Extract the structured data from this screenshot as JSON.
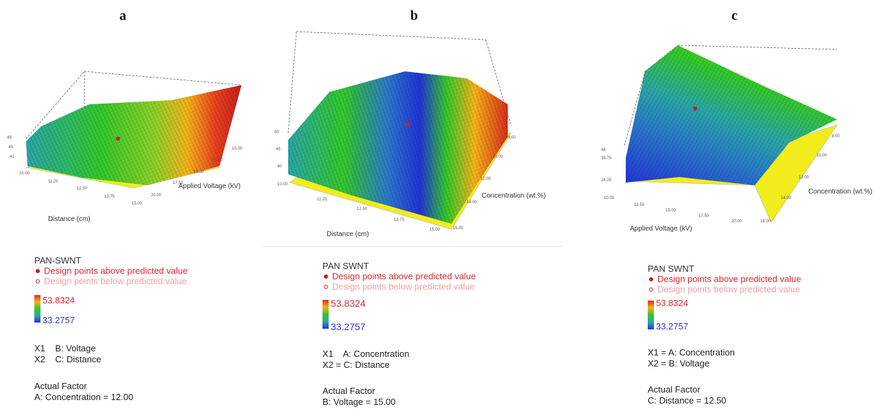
{
  "chart_data": [
    {
      "type": "surface3d",
      "panel": "a",
      "xlabel": "Distance (cm)",
      "ylabel": "Applied Voltage (kV)",
      "x_ticks": [
        "10.00",
        "11.25",
        "12.50",
        "13.75",
        "15.00"
      ],
      "y_ticks": [
        "10.00",
        "12.50",
        "15.00",
        "17.50",
        "20.00"
      ],
      "z_ticks": [
        "41",
        "45",
        "49"
      ],
      "legend_title": "PAN-SWNT",
      "legend_above": "Design points above predicted value",
      "legend_below": "Design points below predicted value",
      "color_max": "53.8324",
      "color_min": "33.2757",
      "x1": "X1    B: Voltage",
      "x2": "X2    C: Distance",
      "actual_factor_title": "Actual Factor",
      "actual_factor": "A: Concentration = 12.00",
      "colormap": [
        "#2233d8",
        "#2aa6a8",
        "#33c82a",
        "#f5b21a",
        "#e32820"
      ]
    },
    {
      "type": "surface3d",
      "panel": "b",
      "xlabel": "Distance (cm)",
      "ylabel": "Concentration (wt.%)",
      "x_ticks": [
        "10.00",
        "11.25",
        "12.50",
        "13.75",
        "15.00"
      ],
      "y_ticks": [
        "8.00",
        "10.00",
        "12.00",
        "14.00",
        "16.00"
      ],
      "z_ticks": [
        "40",
        "45",
        "50"
      ],
      "legend_title": "PAN SWNT",
      "legend_above": "Design points above predicted value",
      "legend_below": "Design points below predicted value",
      "color_max": "53.8324",
      "color_min": "33.2757",
      "x1": "X1    A: Concentration",
      "x2": "X2 = C: Distance",
      "actual_factor_title": "Actual Factor",
      "actual_factor": "B: Voltage = 15.00",
      "colormap": [
        "#2233d8",
        "#2aa6a8",
        "#33c82a",
        "#f5b21a",
        "#e32820"
      ]
    },
    {
      "type": "surface3d",
      "panel": "c",
      "xlabel": "Applied Voltage (kV)",
      "ylabel": "Concentration (wt.%)",
      "x_ticks": [
        "10.00",
        "12.50",
        "15.00",
        "17.50",
        "20.00"
      ],
      "y_ticks": [
        "8.00",
        "10.00",
        "12.00",
        "14.00",
        "16.00"
      ],
      "z_ticks": [
        "24.25",
        "38.75",
        "48"
      ],
      "legend_title": "PAN SWNT",
      "legend_above": "Design points above predicted value",
      "legend_below": "Design points below predicted value",
      "color_max": "53.8324",
      "color_min": "33.2757",
      "x1": "X1 = A: Concentration",
      "x2": "X2 = B: Voltage",
      "actual_factor_title": "Actual Factor",
      "actual_factor": "C: Distance = 12.50",
      "colormap": [
        "#2233d8",
        "#2aa6a8",
        "#33c82a",
        "#f5b21a",
        "#e32820"
      ]
    }
  ],
  "panel_labels": [
    "a",
    "b",
    "c"
  ]
}
